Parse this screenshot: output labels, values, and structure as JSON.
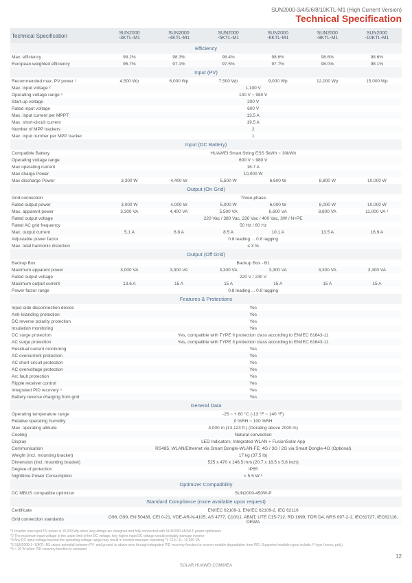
{
  "header": {
    "subtitle": "SUN2000-3/4/5/6/8/10KTL-M1 (High Current Version)",
    "title": "Technical Specification"
  },
  "cols": {
    "label": "Technical Specification",
    "c": [
      "SUN2000\n-3KTL-M1",
      "SUN2000\n-4KTL-M1",
      "SUN2000\n-5KTL-M1",
      "SUN2000\n-6KTL-M1",
      "SUN2000\n-8KTL-M1",
      "SUN2000\n-10KTL-M1"
    ]
  },
  "sections": [
    {
      "title": "Efficiency",
      "rows": [
        {
          "l": "Max. efficiency",
          "v": [
            "98.2%",
            "98.3%",
            "98.4%",
            "98.6%",
            "98.6%",
            "98.6%"
          ]
        },
        {
          "l": "European weighted efficiency",
          "v": [
            "96.7%",
            "97.1%",
            "97.5%",
            "97.7%",
            "98.0%",
            "98.1%"
          ]
        }
      ]
    },
    {
      "title": "Input (PV)",
      "rows": [
        {
          "l": "Recommended max. PV power ¹",
          "v": [
            "4,500 Wp",
            "6,000 Wp",
            "7,500 Wp",
            "9,000 Wp",
            "12,000 Wp",
            "15,000 Wp"
          ]
        },
        {
          "l": "Max. input voltage ²",
          "full": "1,100 V"
        },
        {
          "l": "Operating voltage range ³",
          "full": "140 V ~ 980 V"
        },
        {
          "l": "Start-up voltage",
          "full": "200 V"
        },
        {
          "l": "Rated input voltage",
          "full": "600 V"
        },
        {
          "l": "Max. input current per MPPT",
          "full": "13.5 A"
        },
        {
          "l": "Max. short-circuit current",
          "full": "19.5 A"
        },
        {
          "l": "Number of MPP trackers",
          "full": "2"
        },
        {
          "l": "Max. input number per MPP tracker",
          "full": "1"
        }
      ]
    },
    {
      "title": "Input (DC Battery)",
      "rows": [
        {
          "l": "Compatible Battery",
          "full": "HUAWEI Smart String ESS 5kWh ~ 30kWh"
        },
        {
          "l": "Operating voltage range",
          "full": "600 V ~ 980 V"
        },
        {
          "l": "Max operating current",
          "full": "16.7 A"
        },
        {
          "l": "Max charge Power",
          "full": "10,000 W"
        },
        {
          "l": "Max discharge Power",
          "v": [
            "3,300 W",
            "4,400 W",
            "5,500 W",
            "6,600 W",
            "8,800 W",
            "10,000 W"
          ]
        }
      ]
    },
    {
      "title": "Output (On Grid)",
      "rows": [
        {
          "l": "Grid connection",
          "full": "Three-phase"
        },
        {
          "l": "Rated output power",
          "v": [
            "3,000 W",
            "4,000 W",
            "5,000 W",
            "6,000 W",
            "8,000 W",
            "10,000 W"
          ]
        },
        {
          "l": "Max. apparent power",
          "v": [
            "3,300 VA",
            "4,400 VA",
            "5,500 VA",
            "6,600 VA",
            "8,800 VA",
            "11,000 VA ⁴"
          ]
        },
        {
          "l": "Rated output voltage",
          "full": "220 Vac / 380 Vac, 230 Vac / 400 Vac, 3W / N+PE"
        },
        {
          "l": "Rated AC grid frequency",
          "full": "50 Hz / 60 Hz"
        },
        {
          "l": "Max. output current",
          "v": [
            "5.1 A",
            "6.8 A",
            "8.5 A",
            "10.1 A",
            "13.5 A",
            "16.9 A"
          ]
        },
        {
          "l": "Adjustable power factor",
          "full": "0.8 leading ... 0.8 lagging"
        },
        {
          "l": "Max. total harmonic distortion",
          "full": "≤ 3 %"
        }
      ]
    },
    {
      "title": "Output (Off Grid)",
      "rows": [
        {
          "l": "Backup Box",
          "full": "Backup Box - B1"
        },
        {
          "l": "Maximum apparent power",
          "v": [
            "3,000 VA",
            "3,300 VA",
            "3,300 VA",
            "3,300 VA",
            "3,300 VA",
            "3,300 VA"
          ]
        },
        {
          "l": "Rated output voltage",
          "full": "220 V / 230 V"
        },
        {
          "l": "Maximum output current",
          "v": [
            "13.6 A",
            "15 A",
            "15 A",
            "15 A",
            "15 A",
            "15 A"
          ]
        },
        {
          "l": "Power factor range",
          "full": "0.8 leading ... 0.8 lagging"
        }
      ]
    },
    {
      "title": "Features & Protections",
      "rows": [
        {
          "l": "Input-side disconnection device",
          "full": "Yes"
        },
        {
          "l": "Anti-Islanding protection",
          "full": "Yes"
        },
        {
          "l": "DC reverse polarity protection",
          "full": "Yes"
        },
        {
          "l": "Insulation monitoring",
          "full": "Yes"
        },
        {
          "l": "DC surge protection",
          "full": "Yes, compatible with TYPE II protection class according to EN/IEC 61643-11"
        },
        {
          "l": "AC surge protection",
          "full": "Yes, compatible with TYPE II protection class according to EN/IEC 61643-11"
        },
        {
          "l": "Residual current monitoring",
          "full": "Yes"
        },
        {
          "l": "AC overcurrent protection",
          "full": "Yes"
        },
        {
          "l": "AC short-circuit protection",
          "full": "Yes"
        },
        {
          "l": "AC overvoltage protection",
          "full": "Yes"
        },
        {
          "l": "Arc fault protection",
          "full": "Yes"
        },
        {
          "l": "Ripple receiver control",
          "full": "Yes"
        },
        {
          "l": "Integrated PID recovery ⁵",
          "full": "Yes"
        },
        {
          "l": "Battery reverse charging from grid",
          "full": "Yes"
        }
      ]
    },
    {
      "title": "General Data",
      "rows": [
        {
          "l": "Operating temperature range",
          "full": "-25 ~ + 60 °C (-13 °F ~ 140 °F)"
        },
        {
          "l": "Relative operating humidity",
          "full": "0 %RH ~ 100 %RH"
        },
        {
          "l": "Max. operating altitude",
          "full": "4,000 m (13,123 ft.) (Derating above 2000 m)"
        },
        {
          "l": "Cooling",
          "full": "Natural convection"
        },
        {
          "l": "Display",
          "full": "LED Indicators; Integrated WLAN + FusionSolar App"
        },
        {
          "l": "Communication",
          "full": "RS485; WLAN/Ethernet via Smart Dongle-WLAN-FE; 4G / 3G / 2G via Smart Dongle-4G (Optional)"
        },
        {
          "l": "Weight (incl. mounting bracket)",
          "full": "17 kg (37.5 lb)"
        },
        {
          "l": "Dimension (incl. mounting bracket)",
          "full": "525 x 470 x 146.5 mm (20.7 x 18.5 x 5.8 inch)"
        },
        {
          "l": "Degree of protection",
          "full": "IP65"
        },
        {
          "l": "Nighttime Power Consumption",
          "full": "< 5.5 W ⁶"
        }
      ]
    },
    {
      "title": "Optimizer Compatibility",
      "rows": [
        {
          "l": "DC MBUS compatible optimizer",
          "full": "SUN2000-450W-P"
        }
      ]
    },
    {
      "title": "Standard Compliance (more available upon request)",
      "rows": [
        {
          "l": "Certificate",
          "full": "EN/IEC 62109-1, EN/IEC 62109-2, IEC 62116"
        },
        {
          "l": "Grid connection standards",
          "full": "G98, G99, EN 50438, CEI 0-21, VDE-AR-N-4105, AS 4777, C10/11, ABNT, UTE C15-712, RD 1699, TOR D4, NRS 097-2-1, IEC61727, IEC62116, DEWA"
        }
      ]
    }
  ],
  "footnotes": [
    "*1 Inverter max input PV power is 15,000 Wp when long strings are designed and fully connected with SUN2000-450W-P power optimizers",
    "*2 The maximum input voltage is the upper limit of the DC voltage. Any higher input DC voltage would probably damage inverter",
    "*3 Any DC input voltage beyond the operating voltage range may result in inverter improper operating *4 C10 / 11: 10,000 VA",
    "*5 SUN2000-3~10KTL-M1 raises potential between PV- and ground to above zero through integrated PID recovery function to recover module degradation from PID. Supported module types include: P-type (mono, poly).",
    "*6 < 10 W when PID recovery function is activated"
  ],
  "page": "12",
  "url": "SOLAR.HUAWEI.COM/MEA"
}
